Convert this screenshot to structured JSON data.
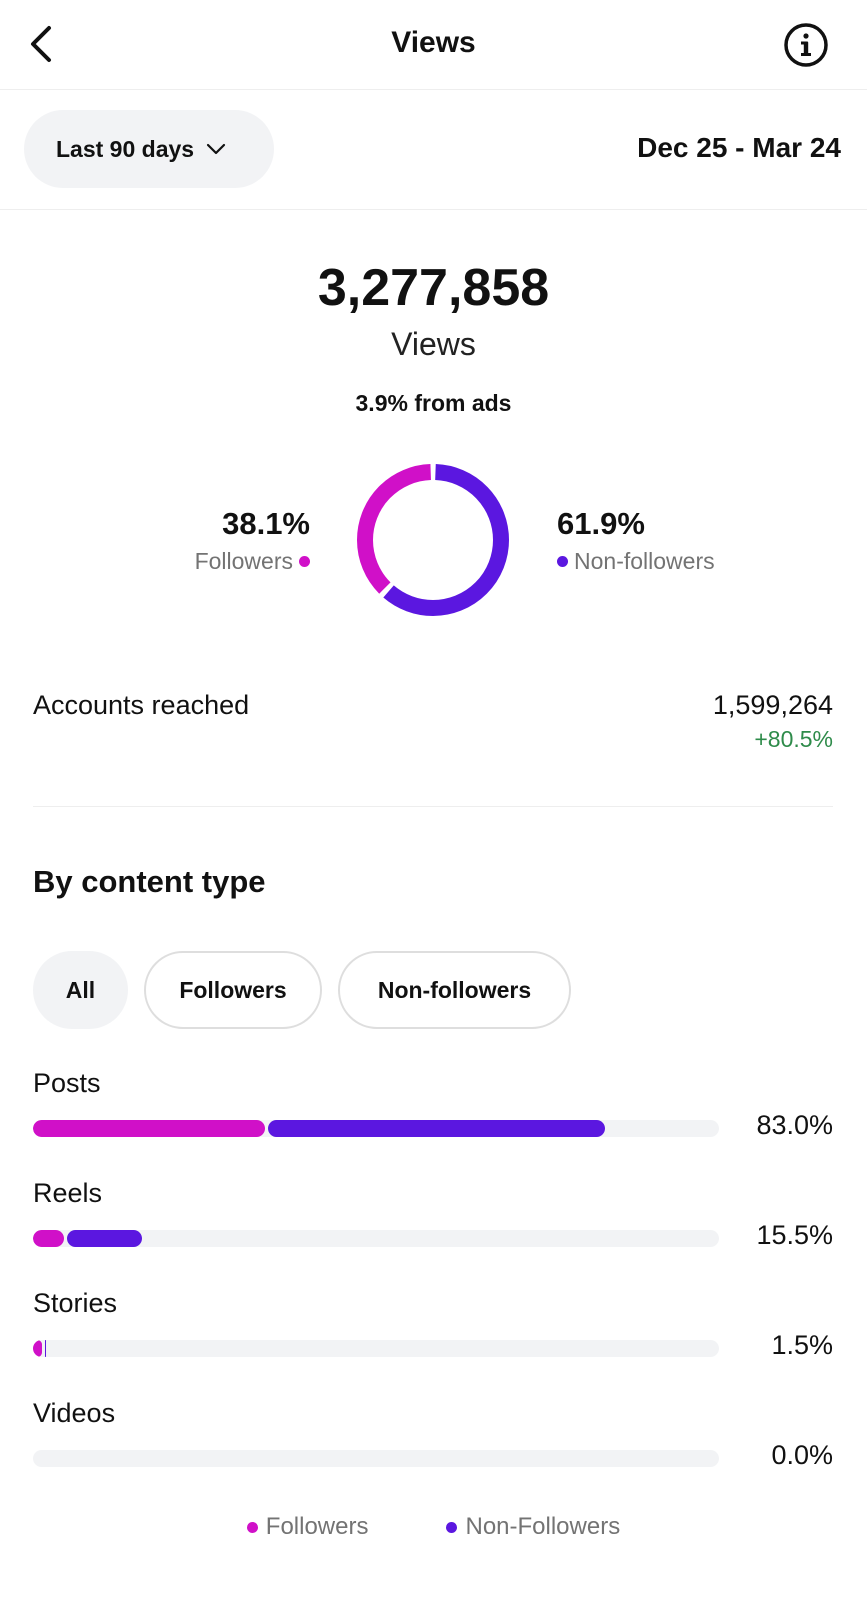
{
  "header": {
    "title": "Views",
    "back_icon": "chevron-left-icon",
    "info_icon": "info-icon"
  },
  "filter": {
    "range_label": "Last 90 days",
    "date_range": "Dec 25 - Mar 24"
  },
  "summary": {
    "total_views": "3,277,858",
    "label": "Views",
    "ads_note": "3.9% from ads",
    "followers_pct": "38.1%",
    "followers_label": "Followers",
    "nonfollowers_pct": "61.9%",
    "nonfollowers_label": "Non-followers",
    "followers_fraction": 0.381,
    "nonfollowers_fraction": 0.619
  },
  "reach": {
    "label": "Accounts reached",
    "value": "1,599,264",
    "change": "+80.5%"
  },
  "content_type": {
    "title": "By content type",
    "chips": [
      {
        "label": "All",
        "active": true
      },
      {
        "label": "Followers",
        "active": false
      },
      {
        "label": "Non-followers",
        "active": false
      }
    ],
    "rows": [
      {
        "label": "Posts",
        "pct": "83.0%",
        "followers": 33.8,
        "nonfollowers": 49.2
      },
      {
        "label": "Reels",
        "pct": "15.5%",
        "followers": 4.5,
        "nonfollowers": 11.0
      },
      {
        "label": "Stories",
        "pct": "1.5%",
        "followers": 1.3,
        "nonfollowers": 0.2
      },
      {
        "label": "Videos",
        "pct": "0.0%",
        "followers": 0,
        "nonfollowers": 0
      }
    ],
    "legend": [
      {
        "label": "Followers"
      },
      {
        "label": "Non-Followers"
      }
    ]
  },
  "colors": {
    "followers": "#d010c8",
    "nonfollowers": "#5b17e0",
    "positive": "#2e8b4a"
  }
}
